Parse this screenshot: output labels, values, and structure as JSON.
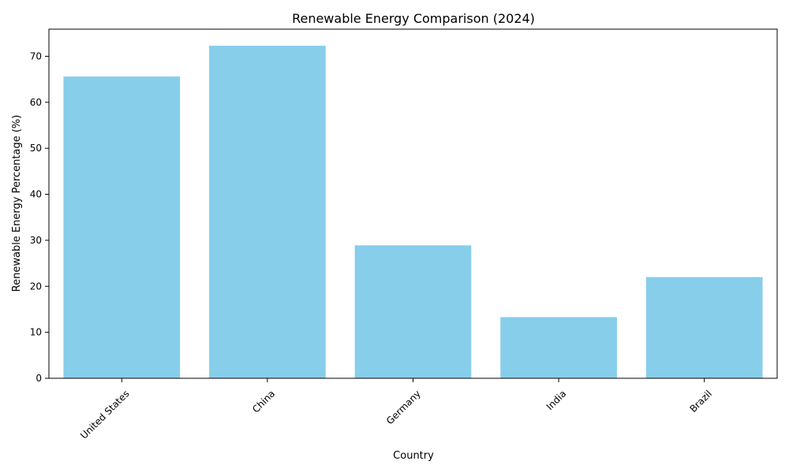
{
  "chart_data": {
    "type": "bar",
    "title": "Renewable Energy Comparison (2024)",
    "xlabel": "Country",
    "ylabel": "Renewable Energy Percentage (%)",
    "categories": [
      "United States",
      "China",
      "Germany",
      "India",
      "Brazil"
    ],
    "values": [
      65.6,
      72.3,
      28.9,
      13.3,
      22.0
    ],
    "ylim": [
      0,
      75.9
    ],
    "yticks": [
      0,
      10,
      20,
      30,
      40,
      50,
      60,
      70
    ],
    "bar_color": "#87ceeb",
    "grid": false,
    "legend": "none",
    "xtick_rotation": 45
  }
}
